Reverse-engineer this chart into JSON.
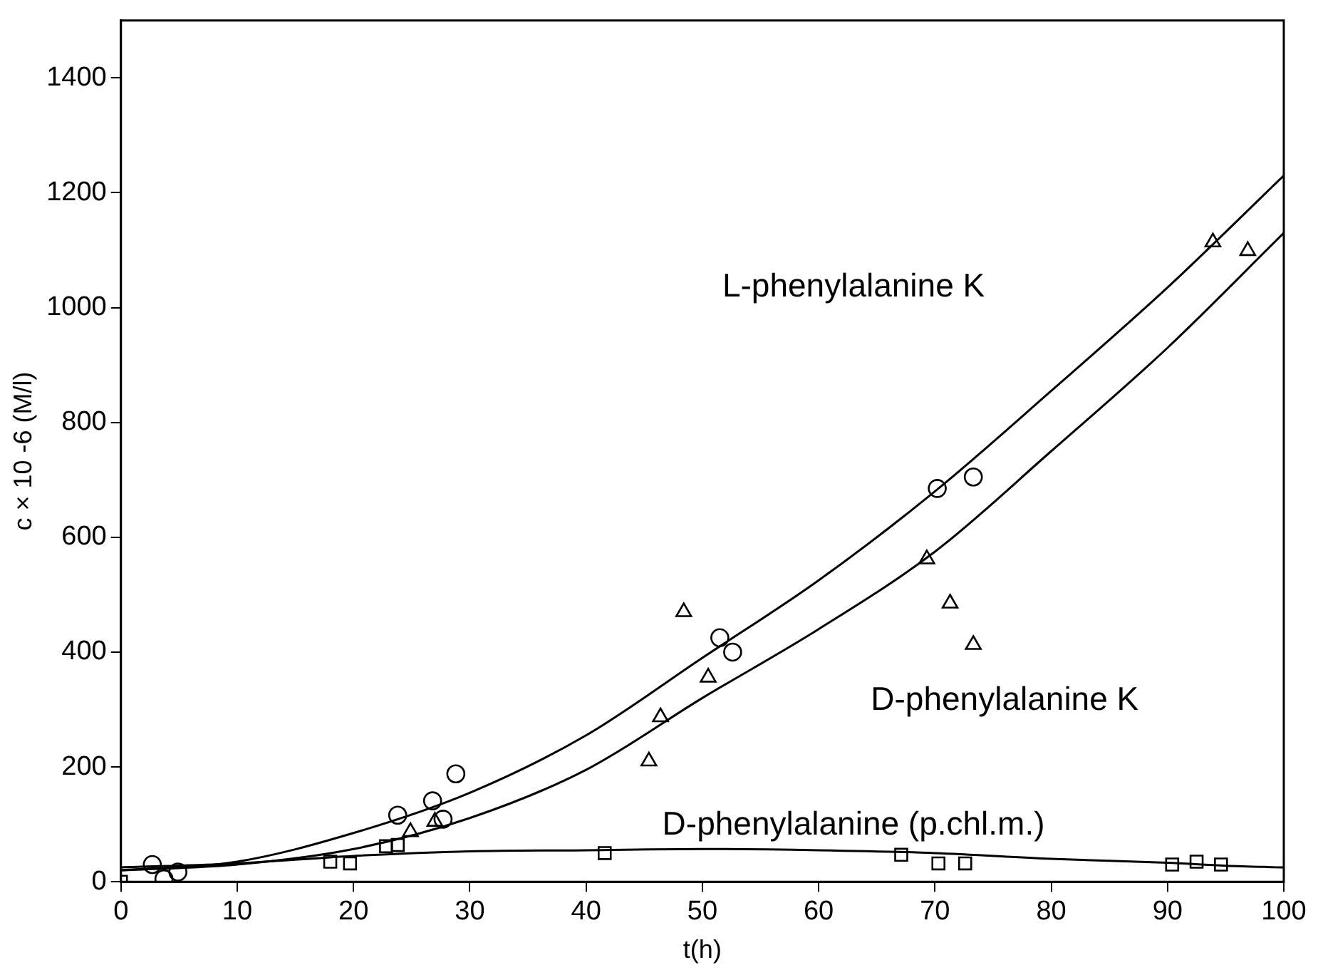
{
  "chart_data": {
    "type": "scatter",
    "xlabel": "t(h)",
    "ylabel": "c × 10 -6 (M/l)",
    "xlim": [
      0,
      100
    ],
    "xticks": [
      0,
      10,
      20,
      30,
      40,
      50,
      60,
      70,
      80,
      90,
      100
    ],
    "ylim": [
      0,
      1500
    ],
    "yticks": [
      0,
      200,
      400,
      600,
      800,
      1000,
      1200,
      1400
    ],
    "grid": false,
    "legend": false,
    "series": [
      {
        "marker": "circle",
        "color": "#000000",
        "x": [
          2.7,
          3.7,
          4.9,
          23.8,
          26.8,
          27.7,
          28.8,
          51.5,
          52.6,
          70.2,
          73.3
        ],
        "values": [
          30,
          5,
          17,
          116,
          141,
          109,
          188,
          425,
          400,
          685,
          705
        ]
      },
      {
        "marker": "triangle",
        "color": "#000000",
        "x": [
          24.9,
          27,
          45.4,
          46.4,
          48.4,
          50.5,
          69.3,
          71.3,
          73.3,
          93.9,
          96.9
        ],
        "values": [
          87,
          105,
          210,
          287,
          470,
          356,
          562,
          485,
          413,
          1114,
          1099
        ]
      },
      {
        "marker": "square",
        "color": "#000000",
        "x": [
          0,
          18,
          19.7,
          22.8,
          23.8,
          41.6,
          67.1,
          70.3,
          72.6,
          90.4,
          92.5,
          94.6
        ],
        "values": [
          0,
          35,
          32,
          62,
          64,
          50,
          47,
          32,
          32,
          30,
          35,
          30
        ]
      },
      {
        "type": "line",
        "marker": "none",
        "color": "#000000",
        "x": [
          0,
          10,
          20,
          30,
          40,
          50,
          60,
          70,
          80,
          90,
          100
        ],
        "values": [
          20,
          35,
          85,
          155,
          255,
          390,
          525,
          680,
          855,
          1035,
          1230
        ]
      },
      {
        "type": "line",
        "marker": "none",
        "color": "#000000",
        "x": [
          0,
          10,
          20,
          30,
          40,
          50,
          60,
          70,
          80,
          90,
          100
        ],
        "values": [
          20,
          30,
          57,
          111,
          195,
          320,
          440,
          575,
          750,
          930,
          1130
        ]
      },
      {
        "type": "line",
        "marker": "none",
        "color": "#000000",
        "x": [
          0,
          10,
          20,
          30,
          40,
          50,
          60,
          70,
          80,
          90,
          95,
          100
        ],
        "values": [
          25,
          32,
          45,
          53,
          55,
          57,
          55,
          50,
          40,
          33,
          28,
          25
        ]
      }
    ],
    "annotations": [
      "L-phenylalanine K",
      "D-phenylalanine K",
      "D-phenylalanine (p.chl.m.)"
    ]
  }
}
